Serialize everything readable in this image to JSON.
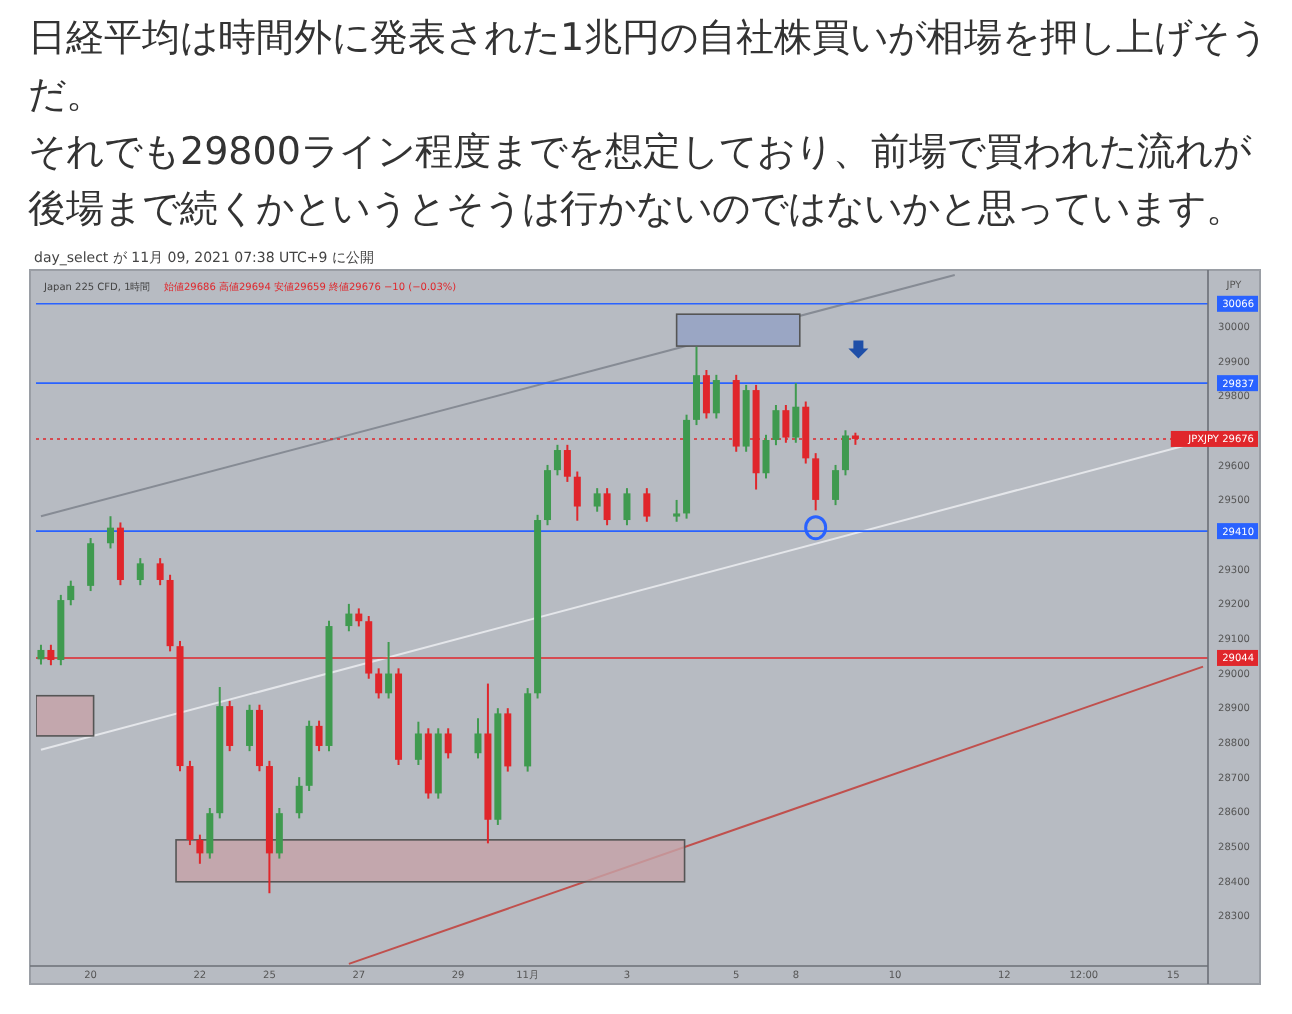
{
  "chart_data": {
    "type": "candlestick",
    "title": "日経平均は時間外に発表された1兆円の自社株買いが相場を押し上げそうだ。",
    "subtitle": "それでも29800ライン程度までを想定しており、前場で買われた流れが後場まで続くかというとそうは行かないのではないかと思っています。",
    "ylabel": "JPY",
    "annotations": [
      "day_select が 11月 09, 2021 07:38 UTC+9 に公開",
      "Japan 225 CFD, 1時間",
      "始値29686 高値29694 安値29659 終値29676 −10 (−0.03%)"
    ],
    "categories": [
      null,
      null,
      null,
      null,
      null,
      "20",
      null,
      null,
      null,
      null,
      null,
      null,
      null,
      null,
      null,
      null,
      "22",
      null,
      null,
      null,
      null,
      null,
      null,
      "25",
      null,
      null,
      null,
      null,
      null,
      null,
      null,
      null,
      "27",
      null,
      null,
      null,
      null,
      null,
      null,
      null,
      null,
      null,
      "29",
      null,
      null,
      null,
      null,
      null,
      null,
      "11月",
      null,
      null,
      null,
      null,
      null,
      null,
      null,
      null,
      null,
      "3",
      null,
      null,
      null,
      null,
      null,
      null,
      null,
      null,
      null,
      null,
      "5",
      null,
      null,
      null,
      null,
      null,
      "8",
      null,
      null,
      null,
      null,
      null,
      null,
      null,
      null,
      null,
      "10",
      null,
      null,
      null,
      null,
      null,
      null,
      null,
      null,
      null,
      null,
      "12",
      null,
      null,
      null,
      null,
      null,
      null,
      null,
      "12:00",
      null,
      null,
      null,
      null,
      null,
      null,
      null,
      null,
      "15",
      null,
      null,
      null
    ],
    "ohlc": [
      [
        29040,
        29082,
        29025,
        29067
      ],
      [
        29067,
        29082,
        29023,
        29038
      ],
      [
        29038,
        29226,
        29023,
        29211
      ],
      [
        29211,
        29267,
        29196,
        29252
      ],
      null,
      [
        29252,
        29390,
        29237,
        29375
      ],
      null,
      [
        29375,
        29453,
        29360,
        29420
      ],
      [
        29420,
        29435,
        29254,
        29269
      ],
      null,
      [
        29269,
        29332,
        29254,
        29317
      ],
      null,
      [
        29317,
        29332,
        29254,
        29269
      ],
      [
        29269,
        29284,
        29063,
        29078
      ],
      [
        29078,
        29093,
        28717,
        28732
      ],
      [
        28732,
        28747,
        28504,
        28519
      ],
      [
        28519,
        28534,
        28450,
        28480
      ],
      [
        28480,
        28611,
        28465,
        28596
      ],
      [
        28596,
        28960,
        28581,
        28905
      ],
      [
        28905,
        28920,
        28775,
        28790
      ],
      null,
      [
        28790,
        28909,
        28775,
        28894
      ],
      [
        28894,
        28909,
        28717,
        28732
      ],
      [
        28732,
        28747,
        28365,
        28480
      ],
      [
        28480,
        28611,
        28465,
        28596
      ],
      null,
      [
        28596,
        28700,
        28581,
        28675
      ],
      [
        28675,
        28863,
        28660,
        28848
      ],
      [
        28848,
        28863,
        28775,
        28790
      ],
      [
        28790,
        29151,
        28775,
        29136
      ],
      null,
      [
        29136,
        29200,
        29121,
        29172
      ],
      [
        29172,
        29187,
        29135,
        29150
      ],
      [
        29150,
        29165,
        28984,
        28999
      ],
      [
        28999,
        29014,
        28927,
        28942
      ],
      [
        28942,
        29090,
        28927,
        28999
      ],
      [
        28999,
        29014,
        28735,
        28750
      ],
      null,
      [
        28750,
        28860,
        28735,
        28826
      ],
      [
        28826,
        28841,
        28638,
        28653
      ],
      [
        28653,
        28841,
        28638,
        28826
      ],
      [
        28826,
        28841,
        28754,
        28769
      ],
      null,
      null,
      [
        28769,
        28870,
        28754,
        28826
      ],
      [
        28826,
        28970,
        28509,
        28577
      ],
      [
        28577,
        28899,
        28562,
        28884
      ],
      [
        28884,
        28899,
        28716,
        28731
      ],
      null,
      [
        28731,
        28957,
        28716,
        28942
      ],
      [
        28942,
        29457,
        28927,
        29442
      ],
      [
        29442,
        29601,
        29427,
        29586
      ],
      [
        29586,
        29659,
        29571,
        29644
      ],
      [
        29644,
        29659,
        29552,
        29567
      ],
      [
        29567,
        29582,
        29440,
        29481
      ],
      null,
      [
        29481,
        29534,
        29466,
        29519
      ],
      [
        29519,
        29534,
        29427,
        29442
      ],
      null,
      [
        29442,
        29534,
        29427,
        29519
      ],
      null,
      [
        29519,
        29534,
        29437,
        29452
      ],
      null,
      null,
      [
        29452,
        29500,
        29437,
        29461
      ],
      [
        29461,
        29746,
        29446,
        29731
      ],
      [
        29731,
        29942,
        29716,
        29860
      ],
      [
        29860,
        29875,
        29735,
        29750
      ],
      [
        29750,
        29861,
        29735,
        29846
      ],
      null,
      [
        29846,
        29861,
        29639,
        29654
      ],
      [
        29654,
        29832,
        29639,
        29817
      ],
      [
        29817,
        29832,
        29530,
        29577
      ],
      [
        29577,
        29688,
        29562,
        29673
      ],
      [
        29673,
        29774,
        29658,
        29759
      ],
      [
        29759,
        29774,
        29665,
        29680
      ],
      [
        29680,
        29837,
        29665,
        29769
      ],
      [
        29769,
        29784,
        29605,
        29620
      ],
      [
        29620,
        29635,
        29470,
        29500
      ],
      null,
      [
        29500,
        29601,
        29485,
        29586
      ],
      [
        29586,
        29701,
        29571,
        29686
      ],
      [
        29686,
        29694,
        29659,
        29676
      ],
      null,
      null,
      null,
      null,
      null,
      null,
      null,
      null,
      null,
      null,
      null,
      null,
      null,
      null,
      null,
      null,
      null,
      null,
      null,
      null,
      null,
      null,
      null,
      null,
      null,
      null,
      null,
      null,
      null,
      null,
      null,
      null,
      null,
      null,
      null
    ],
    "series": [
      {
        "type": "line",
        "color": "#868b94",
        "values": [
          29453,
          null,
          null,
          null,
          null,
          null,
          null,
          null,
          null,
          null,
          null,
          null,
          null,
          null,
          null,
          null,
          null,
          null,
          null,
          null,
          null,
          null,
          null,
          null,
          null,
          null,
          null,
          null,
          null,
          null,
          null,
          null,
          null,
          null,
          null,
          null,
          null,
          null,
          null,
          null,
          null,
          null,
          null,
          null,
          null,
          null,
          null,
          null,
          null,
          null,
          null,
          null,
          null,
          null,
          null,
          null,
          null,
          null,
          null,
          null,
          null,
          null,
          null,
          null,
          null,
          null,
          null,
          null,
          null,
          null,
          null,
          null,
          null,
          null,
          null,
          null,
          null,
          null,
          null,
          null,
          null,
          null,
          null,
          null,
          null,
          null,
          null,
          null,
          null,
          null,
          null,
          null,
          30149,
          null,
          null,
          null,
          null,
          null,
          null,
          null,
          null,
          null,
          null,
          null,
          null,
          null,
          null,
          null,
          null,
          null,
          null,
          null,
          null,
          null,
          null,
          null,
          null,
          null
        ]
      },
      {
        "type": "line",
        "color": "#e4e6ea",
        "values": [
          28779,
          null,
          null,
          null,
          null,
          null,
          null,
          null,
          null,
          null,
          null,
          null,
          null,
          null,
          null,
          null,
          null,
          null,
          null,
          null,
          null,
          null,
          null,
          null,
          null,
          null,
          null,
          null,
          null,
          null,
          null,
          null,
          null,
          null,
          null,
          null,
          null,
          null,
          null,
          null,
          null,
          null,
          null,
          null,
          null,
          null,
          null,
          null,
          null,
          null,
          null,
          null,
          null,
          null,
          null,
          null,
          null,
          null,
          null,
          null,
          null,
          null,
          null,
          null,
          null,
          null,
          null,
          null,
          null,
          null,
          null,
          null,
          null,
          null,
          null,
          null,
          null,
          null,
          null,
          null,
          null,
          null,
          null,
          null,
          null,
          null,
          null,
          null,
          null,
          null,
          null,
          null,
          null,
          null,
          null,
          null,
          null,
          null,
          null,
          null,
          null,
          null,
          null,
          null,
          null,
          null,
          null,
          null,
          null,
          null,
          null,
          null,
          null,
          null,
          null,
          null,
          null,
          29671
        ]
      },
      {
        "type": "line",
        "color": "#c0504d",
        "values": [
          null,
          null,
          null,
          null,
          null,
          null,
          null,
          null,
          null,
          null,
          null,
          null,
          null,
          null,
          null,
          null,
          null,
          null,
          null,
          null,
          null,
          null,
          null,
          null,
          null,
          null,
          null,
          null,
          null,
          null,
          null,
          28161,
          null,
          null,
          null,
          null,
          null,
          null,
          null,
          null,
          null,
          null,
          null,
          null,
          null,
          null,
          null,
          null,
          null,
          null,
          null,
          null,
          null,
          null,
          null,
          null,
          null,
          null,
          null,
          null,
          null,
          null,
          null,
          null,
          null,
          null,
          null,
          null,
          null,
          null,
          null,
          null,
          null,
          null,
          null,
          null,
          null,
          null,
          null,
          null,
          null,
          null,
          null,
          null,
          null,
          null,
          null,
          null,
          null,
          null,
          null,
          null,
          null,
          null,
          null,
          null,
          null,
          null,
          null,
          null,
          null,
          null,
          null,
          null,
          null,
          null,
          null,
          null,
          null,
          null,
          null,
          null,
          null,
          null,
          null,
          null,
          null,
          29019
        ]
      }
    ],
    "ref_lines": [
      {
        "axis": "y",
        "value": 30066,
        "label": "30066",
        "color": "#2962ff"
      },
      {
        "axis": "y",
        "value": 29837,
        "label": "29837",
        "color": "#2962ff"
      },
      {
        "axis": "y",
        "value": 29676,
        "label": "JPXJPY 29676",
        "color": "#e0262b",
        "line_style": "dotted"
      },
      {
        "axis": "y",
        "value": 29410,
        "label": "29410",
        "color": "#2962ff"
      },
      {
        "axis": "y",
        "value": 29044,
        "label": "29044",
        "color": "#e0262b"
      }
    ],
    "ylim": [
      28155,
      30152
    ],
    "yticks": [
      28300,
      28400,
      28500,
      28600,
      28700,
      28800,
      28900,
      29000,
      29100,
      29200,
      29300,
      29500,
      29600,
      29800,
      29900,
      30000
    ]
  }
}
